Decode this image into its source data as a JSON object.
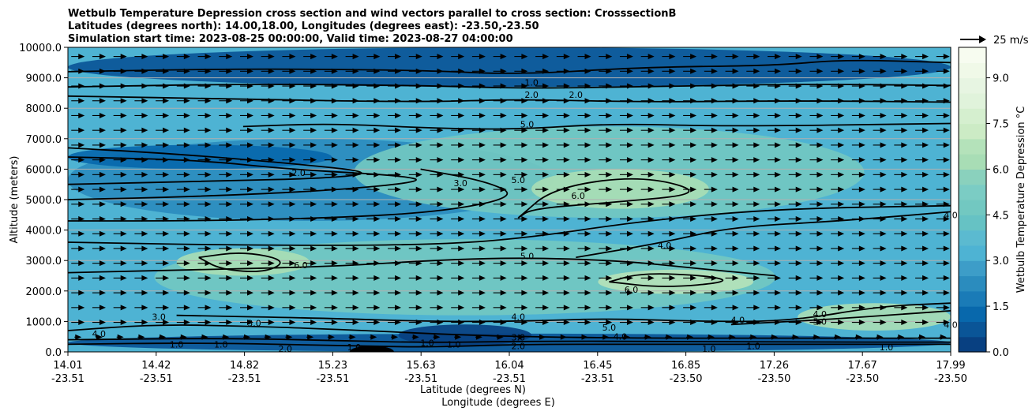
{
  "chart_data": {
    "type": "contour",
    "title_lines": [
      "Wetbulb Temperature Depression cross section and wind vectors parallel to cross section: CrosssectionB",
      "Latitudes (degrees north): 14.00,18.00, Longitudes (degrees east): -23.50,-23.50",
      "Simulation start time: 2023-08-25 00:00:00, Valid time: 2023-08-27 04:00:00"
    ],
    "ylabel": "Altitude (meters)",
    "xlabel_lat": "Latitude (degrees N)",
    "xlabel_lon": "Longitude (degrees E)",
    "ylim": [
      0,
      10000
    ],
    "yticks": [
      "0.0",
      "1000.0",
      "2000.0",
      "3000.0",
      "4000.0",
      "5000.0",
      "6000.0",
      "7000.0",
      "8000.0",
      "9000.0",
      "10000.0"
    ],
    "ytick_values": [
      0,
      1000,
      2000,
      3000,
      4000,
      5000,
      6000,
      7000,
      8000,
      9000,
      10000
    ],
    "xticks": [
      {
        "lat": "14.01",
        "lon": "-23.51"
      },
      {
        "lat": "14.42",
        "lon": "-23.51"
      },
      {
        "lat": "14.82",
        "lon": "-23.51"
      },
      {
        "lat": "15.23",
        "lon": "-23.51"
      },
      {
        "lat": "15.63",
        "lon": "-23.51"
      },
      {
        "lat": "16.04",
        "lon": "-23.51"
      },
      {
        "lat": "16.45",
        "lon": "-23.51"
      },
      {
        "lat": "16.85",
        "lon": "-23.50"
      },
      {
        "lat": "17.26",
        "lon": "-23.50"
      },
      {
        "lat": "17.67",
        "lon": "-23.50"
      },
      {
        "lat": "17.99",
        "lon": "-23.50"
      }
    ],
    "colorbar": {
      "label": "Wetbulb Temperature Depression °C",
      "range": [
        0,
        10
      ],
      "ticks": [
        "0.0",
        "1.5",
        "3.0",
        "4.5",
        "6.0",
        "7.5",
        "9.0"
      ],
      "tick_values": [
        0,
        1.5,
        3.0,
        4.5,
        6.0,
        7.5,
        9.0
      ],
      "levels": 20,
      "colors": [
        "#084081",
        "#0a5597",
        "#0868ac",
        "#1a7bb7",
        "#2b8cbe",
        "#3d9dc8",
        "#4eb3d3",
        "#5bbad0",
        "#66c2c4",
        "#72c8c1",
        "#7bccc4",
        "#8ad1bd",
        "#a8ddb5",
        "#b4e2ba",
        "#ccebc5",
        "#d5efcf",
        "#e0f3db",
        "#e7f5e2",
        "#f0f9e8",
        "#f7fcf0"
      ]
    },
    "wind_key": {
      "label": "25 m/s",
      "speed": 25
    },
    "wind_direction": "parallel, left-to-right",
    "field_regions": [
      {
        "x": [
          14.01,
          17.99
        ],
        "y": [
          0,
          10000
        ],
        "value": 3.4
      },
      {
        "x": [
          14.01,
          17.99
        ],
        "y": [
          8700,
          10000
        ],
        "value": 0.8
      },
      {
        "x": [
          14.01,
          16.2
        ],
        "y": [
          4300,
          7000
        ],
        "value": 2.0
      },
      {
        "x": [
          14.01,
          15.2
        ],
        "y": [
          6000,
          6800
        ],
        "value": 1.0
      },
      {
        "x": [
          15.3,
          17.6
        ],
        "y": [
          4400,
          7400
        ],
        "value": 4.8
      },
      {
        "x": [
          16.1,
          16.9
        ],
        "y": [
          4700,
          6000
        ],
        "value": 6.3
      },
      {
        "x": [
          14.4,
          17.2
        ],
        "y": [
          1200,
          3700
        ],
        "value": 4.6
      },
      {
        "x": [
          14.5,
          15.1
        ],
        "y": [
          2500,
          3400
        ],
        "value": 6.2
      },
      {
        "x": [
          16.4,
          17.1
        ],
        "y": [
          1900,
          2700
        ],
        "value": 6.6
      },
      {
        "x": [
          17.3,
          17.99
        ],
        "y": [
          700,
          1600
        ],
        "value": 6.0
      },
      {
        "x": [
          14.01,
          17.99
        ],
        "y": [
          0,
          600
        ],
        "value": 0.8
      },
      {
        "x": [
          15.5,
          16.1
        ],
        "y": [
          200,
          900
        ],
        "value": 0.4
      }
    ],
    "contours": [
      {
        "level": "1.0",
        "points": [
          [
            14.01,
            9200
          ],
          [
            14.8,
            9300
          ],
          [
            15.6,
            9250
          ],
          [
            16.04,
            9100
          ],
          [
            16.6,
            9350
          ],
          [
            17.2,
            9400
          ],
          [
            17.5,
            9600
          ],
          [
            17.99,
            9500
          ]
        ]
      },
      {
        "level": "2.0",
        "points": [
          [
            14.01,
            8700
          ],
          [
            14.8,
            8800
          ],
          [
            15.6,
            8750
          ],
          [
            16.04,
            8650
          ],
          [
            16.6,
            8700
          ],
          [
            17.3,
            8800
          ],
          [
            17.99,
            8750
          ]
        ]
      },
      {
        "level": "3.0",
        "points": [
          [
            14.01,
            8400
          ],
          [
            14.8,
            8300
          ],
          [
            15.6,
            8200
          ],
          [
            16.04,
            8300
          ],
          [
            16.6,
            8200
          ],
          [
            17.3,
            8250
          ],
          [
            17.99,
            8200
          ]
        ]
      },
      {
        "level": "5.0",
        "points": [
          [
            14.8,
            7400
          ],
          [
            15.2,
            7500
          ],
          [
            15.63,
            7350
          ],
          [
            16.04,
            7300
          ],
          [
            16.45,
            7500
          ],
          [
            17.0,
            7400
          ],
          [
            17.99,
            7500
          ]
        ]
      },
      {
        "level": "2.0",
        "points": [
          [
            14.01,
            6700
          ],
          [
            14.5,
            6500
          ],
          [
            15.0,
            6200
          ],
          [
            15.4,
            5900
          ],
          [
            15.2,
            5700
          ],
          [
            14.6,
            5600
          ],
          [
            14.01,
            5500
          ]
        ]
      },
      {
        "level": "3.0",
        "points": [
          [
            14.01,
            5000
          ],
          [
            14.6,
            5100
          ],
          [
            15.2,
            5300
          ],
          [
            15.63,
            5600
          ],
          [
            15.5,
            5800
          ],
          [
            15.0,
            6000
          ],
          [
            14.6,
            6300
          ],
          [
            14.01,
            6400
          ]
        ]
      },
      {
        "level": "5.0",
        "points": [
          [
            15.6,
            6000
          ],
          [
            15.9,
            5600
          ],
          [
            16.04,
            5100
          ],
          [
            15.7,
            4600
          ],
          [
            15.2,
            4400
          ],
          [
            14.6,
            4300
          ],
          [
            14.01,
            4300
          ]
        ]
      },
      {
        "level": "6.0",
        "points": [
          [
            16.04,
            4400
          ],
          [
            16.2,
            5400
          ],
          [
            16.6,
            5800
          ],
          [
            16.9,
            5200
          ],
          [
            16.45,
            4900
          ],
          [
            16.1,
            4700
          ],
          [
            16.04,
            4400
          ]
        ]
      },
      {
        "level": "4.0",
        "points": [
          [
            16.3,
            3100
          ],
          [
            16.7,
            3600
          ],
          [
            17.0,
            4100
          ],
          [
            17.5,
            4300
          ],
          [
            17.99,
            4600
          ]
        ]
      },
      {
        "level": "4.0",
        "points": [
          [
            14.01,
            3600
          ],
          [
            14.8,
            3500
          ],
          [
            15.6,
            3500
          ],
          [
            16.04,
            3700
          ],
          [
            16.6,
            4300
          ],
          [
            17.2,
            4700
          ],
          [
            17.99,
            4800
          ]
        ]
      },
      {
        "level": "5.0",
        "points": [
          [
            14.01,
            2600
          ],
          [
            14.6,
            2700
          ],
          [
            15.2,
            2800
          ],
          [
            15.63,
            3000
          ],
          [
            16.04,
            3100
          ],
          [
            16.5,
            3000
          ],
          [
            16.9,
            2700
          ],
          [
            17.2,
            2500
          ]
        ]
      },
      {
        "level": "6.0",
        "points": [
          [
            14.6,
            3100
          ],
          [
            14.8,
            3300
          ],
          [
            15.0,
            3000
          ],
          [
            14.9,
            2600
          ],
          [
            14.7,
            2700
          ],
          [
            14.6,
            3100
          ]
        ]
      },
      {
        "level": "6.0",
        "points": [
          [
            16.45,
            2300
          ],
          [
            16.6,
            2600
          ],
          [
            16.9,
            2500
          ],
          [
            17.0,
            2300
          ],
          [
            16.7,
            2100
          ],
          [
            16.45,
            2300
          ]
        ]
      },
      {
        "level": "5.0",
        "points": [
          [
            17.0,
            900
          ],
          [
            17.4,
            1050
          ],
          [
            17.8,
            1250
          ],
          [
            17.99,
            1350
          ]
        ]
      },
      {
        "level": "4.0",
        "points": [
          [
            14.5,
            1200
          ],
          [
            15.2,
            1100
          ],
          [
            15.63,
            1000
          ],
          [
            16.04,
            1000
          ],
          [
            16.45,
            1100
          ],
          [
            16.85,
            1000
          ],
          [
            17.26,
            1000
          ],
          [
            17.67,
            1500
          ],
          [
            17.99,
            1600
          ]
        ]
      },
      {
        "level": "3.0",
        "points": [
          [
            14.01,
            700
          ],
          [
            14.4,
            900
          ],
          [
            14.8,
            850
          ],
          [
            15.2,
            750
          ],
          [
            15.63,
            600
          ],
          [
            16.04,
            500
          ],
          [
            16.6,
            450
          ],
          [
            17.3,
            450
          ],
          [
            17.99,
            450
          ]
        ]
      },
      {
        "level": "1.0",
        "points": [
          [
            14.01,
            250
          ],
          [
            14.6,
            300
          ],
          [
            15.3,
            200
          ],
          [
            15.63,
            150
          ],
          [
            16.04,
            250
          ],
          [
            16.6,
            250
          ],
          [
            17.3,
            250
          ],
          [
            17.99,
            250
          ]
        ]
      },
      {
        "level": "2.0",
        "points": [
          [
            14.01,
            400
          ],
          [
            14.7,
            450
          ],
          [
            15.2,
            380
          ],
          [
            15.63,
            300
          ],
          [
            16.04,
            350
          ],
          [
            16.7,
            350
          ],
          [
            17.3,
            320
          ],
          [
            17.99,
            320
          ]
        ]
      }
    ],
    "contour_labels": [
      {
        "text": "1.0",
        "x": 16.1,
        "y": 8850
      },
      {
        "text": "2.0",
        "x": 16.1,
        "y": 8450
      },
      {
        "text": "2.0",
        "x": 16.3,
        "y": 8450
      },
      {
        "text": "5.0",
        "x": 16.08,
        "y": 7480
      },
      {
        "text": "2.0",
        "x": 15.05,
        "y": 5880
      },
      {
        "text": "3.0",
        "x": 15.78,
        "y": 5550
      },
      {
        "text": "5.0",
        "x": 16.04,
        "y": 5650
      },
      {
        "text": "6.0",
        "x": 16.31,
        "y": 5130
      },
      {
        "text": "4.0",
        "x": 17.99,
        "y": 4500
      },
      {
        "text": "4.0",
        "x": 16.7,
        "y": 3500
      },
      {
        "text": "5.0",
        "x": 16.08,
        "y": 3150
      },
      {
        "text": "6.0",
        "x": 15.06,
        "y": 2850
      },
      {
        "text": "6.0",
        "x": 16.55,
        "y": 2050
      },
      {
        "text": "4.0",
        "x": 16.04,
        "y": 1150
      },
      {
        "text": "4.0",
        "x": 17.03,
        "y": 1050
      },
      {
        "text": "4.0",
        "x": 17.4,
        "y": 1250
      },
      {
        "text": "5.0",
        "x": 17.4,
        "y": 1000
      },
      {
        "text": "3.0",
        "x": 14.42,
        "y": 1150
      },
      {
        "text": "3.0",
        "x": 14.85,
        "y": 950
      },
      {
        "text": "4.0",
        "x": 14.15,
        "y": 600
      },
      {
        "text": "1.0",
        "x": 14.5,
        "y": 250
      },
      {
        "text": "1.0",
        "x": 14.7,
        "y": 250
      },
      {
        "text": "2.0",
        "x": 14.99,
        "y": 100
      },
      {
        "text": "1.0",
        "x": 15.3,
        "y": 150
      },
      {
        "text": "1.0",
        "x": 15.63,
        "y": 300
      },
      {
        "text": "1.0",
        "x": 15.75,
        "y": 250
      },
      {
        "text": "3.0",
        "x": 16.04,
        "y": 480
      },
      {
        "text": "2.0",
        "x": 16.04,
        "y": 200
      },
      {
        "text": "4.0",
        "x": 16.5,
        "y": 500
      },
      {
        "text": "5.0",
        "x": 16.45,
        "y": 800
      },
      {
        "text": "1.0",
        "x": 16.9,
        "y": 100
      },
      {
        "text": "1.0",
        "x": 17.1,
        "y": 200
      },
      {
        "text": "1.0",
        "x": 17.7,
        "y": 150
      },
      {
        "text": "4.0",
        "x": 17.99,
        "y": 900
      }
    ],
    "min_value_region": {
      "x": [
        15.28,
        15.48
      ],
      "y": [
        0,
        200
      ],
      "color": "#000000"
    }
  }
}
